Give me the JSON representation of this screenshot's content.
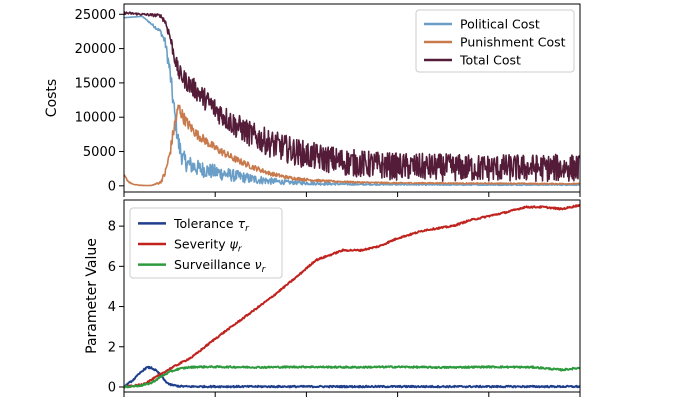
{
  "chart_data": [
    {
      "type": "line",
      "title": "",
      "xlabel": "",
      "ylabel": "Costs",
      "ylim": [
        -900,
        26500
      ],
      "yticks": [
        0,
        5000,
        10000,
        15000,
        20000,
        25000
      ],
      "xlim": [
        0,
        500
      ],
      "xticks": [
        0,
        100,
        200,
        300,
        400,
        500
      ],
      "xtick_labels_visible": false,
      "grid": false,
      "legend_position": "top-right",
      "noisy": true,
      "series": [
        {
          "name": "Political Cost",
          "color": "#6a9ec6",
          "x": [
            0,
            20,
            40,
            45,
            50,
            55,
            60,
            65,
            70,
            80,
            100,
            120,
            140,
            160,
            180,
            200,
            220,
            240,
            260,
            280,
            300,
            340,
            380,
            420,
            460,
            500
          ],
          "values": [
            24500,
            24700,
            22500,
            21000,
            17000,
            11000,
            6000,
            3800,
            3200,
            2600,
            2000,
            1500,
            1000,
            700,
            500,
            400,
            300,
            250,
            200,
            200,
            200,
            150,
            150,
            150,
            150,
            150
          ],
          "noise": [
            0,
            0,
            300,
            600,
            1200,
            1500,
            1500,
            1400,
            1300,
            1200,
            1100,
            900,
            700,
            500,
            300,
            250,
            200,
            150,
            100,
            100,
            100,
            80,
            80,
            80,
            80,
            80
          ]
        },
        {
          "name": "Punishment Cost",
          "color": "#c87a4c",
          "x": [
            0,
            5,
            10,
            20,
            30,
            40,
            45,
            50,
            55,
            60,
            65,
            70,
            80,
            100,
            120,
            140,
            160,
            180,
            200,
            220,
            240,
            260,
            280,
            300,
            340,
            380,
            420,
            460,
            500
          ],
          "values": [
            1500,
            600,
            200,
            50,
            50,
            500,
            1800,
            4500,
            8500,
            11500,
            10000,
            9000,
            7500,
            5500,
            4000,
            2800,
            1800,
            1200,
            900,
            700,
            600,
            500,
            450,
            400,
            400,
            350,
            350,
            300,
            300
          ],
          "noise": [
            200,
            100,
            50,
            20,
            20,
            200,
            500,
            800,
            1000,
            1000,
            900,
            800,
            700,
            600,
            500,
            400,
            300,
            250,
            200,
            150,
            120,
            100,
            100,
            100,
            80,
            80,
            80,
            80,
            80
          ]
        },
        {
          "name": "Total Cost",
          "color": "#541c39",
          "x": [
            0,
            20,
            40,
            45,
            50,
            55,
            60,
            70,
            80,
            90,
            100,
            120,
            140,
            160,
            180,
            200,
            220,
            240,
            260,
            280,
            300,
            340,
            380,
            420,
            460,
            500
          ],
          "values": [
            25200,
            25000,
            24800,
            24000,
            22000,
            19000,
            16500,
            15000,
            13800,
            12500,
            11200,
            9000,
            7400,
            6200,
            5300,
            4500,
            4000,
            3500,
            3200,
            3000,
            2800,
            2700,
            2600,
            2600,
            2600,
            2600
          ],
          "noise": [
            200,
            150,
            250,
            500,
            800,
            1000,
            1200,
            1400,
            1500,
            1600,
            1700,
            1800,
            1900,
            2000,
            2000,
            2000,
            2000,
            2000,
            2000,
            2000,
            2000,
            2000,
            2000,
            2000,
            2000,
            2000
          ]
        }
      ]
    },
    {
      "type": "line",
      "title": "",
      "xlabel": "",
      "ylabel": "Parameter Value",
      "ylim": [
        -0.25,
        9.3
      ],
      "yticks": [
        0,
        2,
        4,
        6,
        8
      ],
      "xlim": [
        0,
        500
      ],
      "xticks": [
        0,
        100,
        200,
        300,
        400,
        500
      ],
      "xtick_labels_visible": false,
      "grid": false,
      "legend_position": "top-left",
      "series": [
        {
          "name": "Tolerance",
          "symbol": "τ",
          "subscript": "r",
          "color": "#1f3f8c",
          "x": [
            0,
            10,
            20,
            25,
            30,
            35,
            40,
            45,
            50,
            60,
            70,
            80,
            100,
            200,
            300,
            400,
            500
          ],
          "values": [
            0.0,
            0.35,
            0.8,
            0.97,
            0.95,
            0.82,
            0.6,
            0.3,
            0.12,
            0.04,
            0.02,
            0.02,
            0.02,
            0.02,
            0.02,
            0.02,
            0.02
          ]
        },
        {
          "name": "Severity",
          "symbol": "ψ",
          "subscript": "r",
          "color": "#c0231e",
          "x": [
            0,
            10,
            20,
            30,
            50,
            75,
            100,
            130,
            160,
            190,
            210,
            240,
            260,
            280,
            300,
            330,
            360,
            380,
            400,
            420,
            440,
            460,
            480,
            500
          ],
          "values": [
            0.0,
            0.05,
            0.12,
            0.35,
            0.9,
            1.5,
            2.4,
            3.4,
            4.4,
            5.5,
            6.3,
            6.8,
            6.8,
            7.0,
            7.4,
            7.8,
            8.0,
            8.3,
            8.5,
            8.7,
            8.95,
            8.95,
            8.85,
            9.05
          ]
        },
        {
          "name": "Surveillance",
          "symbol": "ν",
          "subscript": "r",
          "color": "#2e9a3e",
          "x": [
            0,
            20,
            30,
            40,
            50,
            60,
            70,
            80,
            100,
            150,
            200,
            250,
            300,
            350,
            400,
            450,
            480,
            490,
            500
          ],
          "values": [
            0.0,
            0.08,
            0.2,
            0.5,
            0.75,
            0.9,
            0.97,
            1.0,
            1.0,
            0.98,
            1.0,
            0.98,
            1.0,
            0.97,
            1.0,
            0.98,
            0.85,
            0.9,
            0.95
          ]
        }
      ]
    }
  ]
}
